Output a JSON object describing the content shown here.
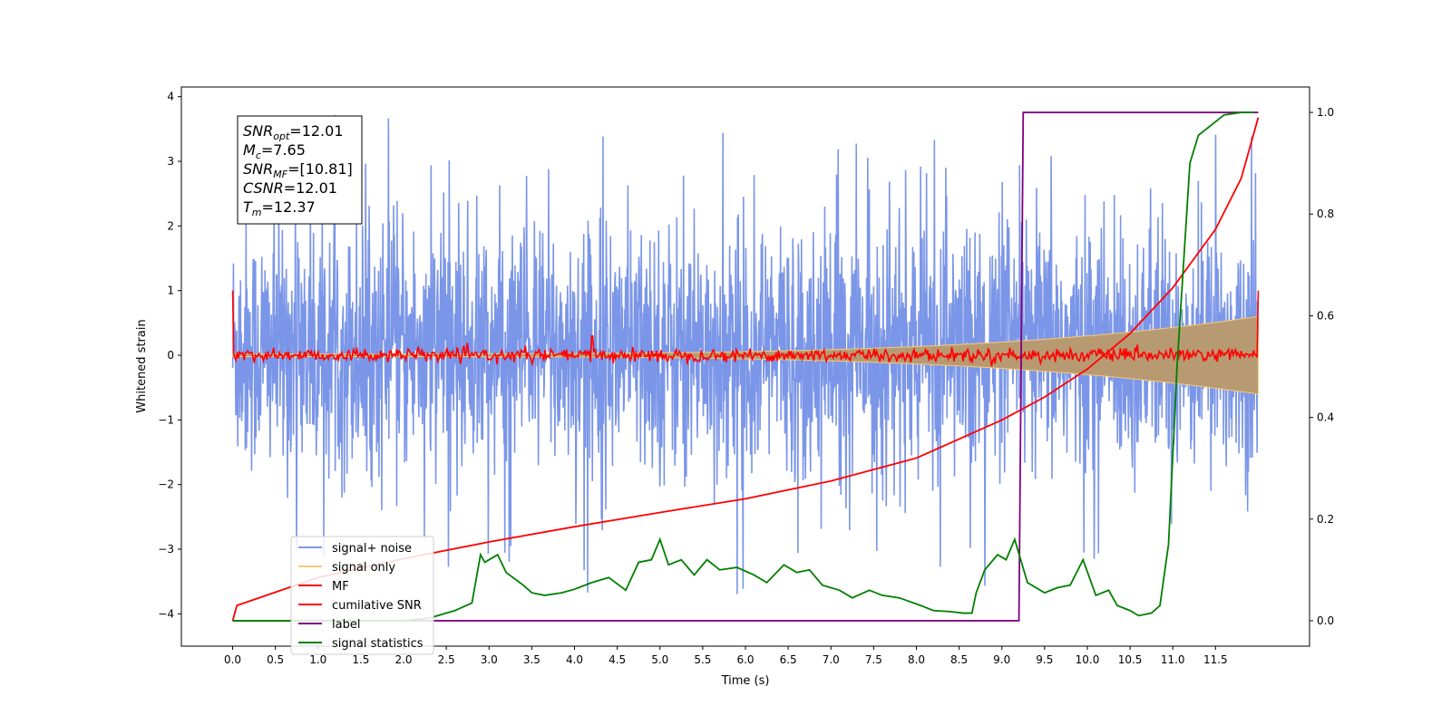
{
  "chart_data": {
    "type": "line",
    "xlabel": "Time (s)",
    "ylabel": "Whitened strain",
    "xlim": [
      -0.6,
      12.6
    ],
    "ylim_left": [
      -4.5,
      4.15
    ],
    "ylim_right": [
      -0.05,
      1.05
    ],
    "x_ticks": [
      0.0,
      0.5,
      1.0,
      1.5,
      2.0,
      2.5,
      3.0,
      3.5,
      4.0,
      4.5,
      5.0,
      5.5,
      6.0,
      6.5,
      7.0,
      7.5,
      8.0,
      8.5,
      9.0,
      9.5,
      10.0,
      10.5,
      11.0,
      11.5
    ],
    "x_tick_labels": [
      "0.0",
      "0.5",
      "1.0",
      "1.5",
      "2.0",
      "2.5",
      "3.0",
      "3.5",
      "4.0",
      "4.5",
      "5.0",
      "5.5",
      "6.0",
      "6.5",
      "7.0",
      "7.5",
      "8.0",
      "8.5",
      "9.0",
      "9.5",
      "10.0",
      "10.5",
      "11.0",
      "11.5"
    ],
    "y_left_ticks": [
      4,
      3,
      2,
      1,
      0,
      -1,
      -2,
      -3,
      -4
    ],
    "y_left_tick_labels": [
      "4",
      "3",
      "2",
      "1",
      "0",
      "−1",
      "−2",
      "−3",
      "−4"
    ],
    "y_right_ticks": [
      1.0,
      0.8,
      0.6,
      0.4,
      0.2,
      0.0
    ],
    "y_right_tick_labels": [
      "1.0",
      "0.8",
      "0.6",
      "0.4",
      "0.2",
      "0.0"
    ],
    "grid": false,
    "legend_position": "lower-left",
    "annotation_lines": [
      {
        "symbol": "SNR",
        "sub": "opt",
        "value": "=12.01"
      },
      {
        "symbol": "M",
        "sub": "c",
        "value": "=7.65"
      },
      {
        "symbol": "SNR",
        "sub": "MF",
        "value": "=[10.81]"
      },
      {
        "symbol": "CSNR",
        "sub": "",
        "value": "=12.01"
      },
      {
        "symbol": "T",
        "sub": "m",
        "value": "=12.37"
      }
    ],
    "series": [
      {
        "name": "signal+ noise",
        "color": "#7b96e8",
        "axis": "left",
        "style": "dense noise",
        "x_range": [
          0.0,
          12.0
        ],
        "typical_range": [
          -1.9,
          2.2
        ],
        "extremes": [
          -4.15,
          3.75
        ]
      },
      {
        "name": "signal only",
        "color": "#f5c97a",
        "axis": "left",
        "style": "chirp envelope",
        "x_range": [
          0.0,
          12.0
        ],
        "amplitude_start": 0.02,
        "amplitude_end": 0.6
      },
      {
        "name": "MF",
        "color": "#ff0000",
        "axis": "left",
        "style": "noise around zero",
        "x_range": [
          0.0,
          12.0
        ],
        "start_value": 1.0,
        "end_value": 1.0,
        "spike_x": 4.2,
        "spike_value": 0.3
      },
      {
        "name": "cumilative SNR",
        "color": "#ff0000",
        "axis": "right",
        "x": [
          0.0,
          0.05,
          1.0,
          2.0,
          3.0,
          4.0,
          5.0,
          6.0,
          7.0,
          8.0,
          9.0,
          9.5,
          10.0,
          10.5,
          11.0,
          11.5,
          11.8,
          12.0
        ],
        "values": [
          0.0,
          0.03,
          0.085,
          0.122,
          0.155,
          0.185,
          0.213,
          0.24,
          0.275,
          0.32,
          0.395,
          0.44,
          0.495,
          0.565,
          0.655,
          0.77,
          0.87,
          0.99
        ]
      },
      {
        "name": "label",
        "color": "#800080",
        "axis": "right",
        "x": [
          0.0,
          9.2,
          9.25,
          12.0
        ],
        "values": [
          0.0,
          0.0,
          1.0,
          1.0
        ]
      },
      {
        "name": "signal statistics",
        "color": "#008000",
        "axis": "right",
        "x": [
          0.0,
          1.0,
          2.0,
          2.3,
          2.5,
          2.6,
          2.8,
          2.9,
          2.95,
          3.1,
          3.2,
          3.4,
          3.5,
          3.65,
          3.85,
          4.0,
          4.2,
          4.4,
          4.6,
          4.75,
          4.9,
          5.0,
          5.1,
          5.25,
          5.4,
          5.55,
          5.7,
          5.9,
          6.1,
          6.25,
          6.45,
          6.6,
          6.75,
          6.9,
          7.1,
          7.25,
          7.45,
          7.6,
          7.8,
          8.05,
          8.2,
          8.4,
          8.55,
          8.65,
          8.7,
          8.8,
          8.95,
          9.05,
          9.15,
          9.3,
          9.5,
          9.65,
          9.8,
          9.95,
          10.1,
          10.25,
          10.35,
          10.5,
          10.6,
          10.75,
          10.85,
          10.95,
          11.05,
          11.2,
          11.3,
          11.45,
          11.6,
          11.8,
          11.9,
          11.95
        ],
        "values": [
          0.0,
          0.0,
          0.0,
          0.005,
          0.015,
          0.02,
          0.035,
          0.13,
          0.115,
          0.13,
          0.095,
          0.07,
          0.055,
          0.05,
          0.055,
          0.062,
          0.075,
          0.085,
          0.06,
          0.115,
          0.12,
          0.16,
          0.11,
          0.12,
          0.09,
          0.12,
          0.1,
          0.105,
          0.09,
          0.075,
          0.11,
          0.095,
          0.1,
          0.07,
          0.06,
          0.045,
          0.06,
          0.05,
          0.045,
          0.03,
          0.02,
          0.018,
          0.015,
          0.015,
          0.055,
          0.1,
          0.13,
          0.12,
          0.16,
          0.075,
          0.055,
          0.065,
          0.07,
          0.12,
          0.05,
          0.06,
          0.03,
          0.02,
          0.01,
          0.015,
          0.03,
          0.15,
          0.5,
          0.9,
          0.955,
          0.975,
          0.995,
          1.0,
          1.0,
          1.0
        ]
      }
    ]
  }
}
